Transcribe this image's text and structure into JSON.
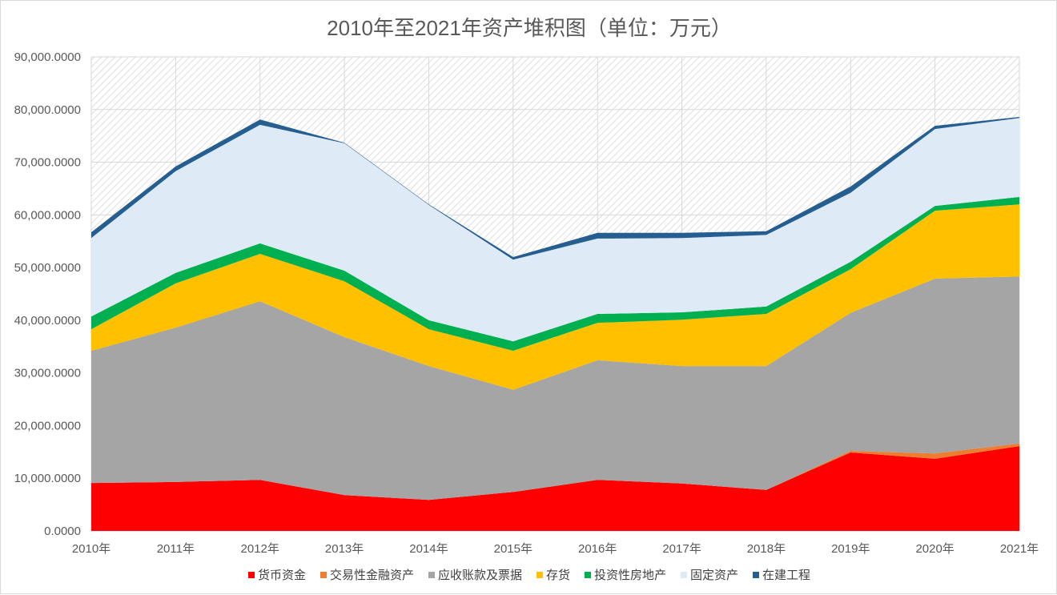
{
  "chart_data": {
    "type": "area",
    "stacked": true,
    "title": "2010年至2021年资产堆积图（单位：万元）",
    "categories": [
      "2010年",
      "2011年",
      "2012年",
      "2013年",
      "2014年",
      "2015年",
      "2016年",
      "2017年",
      "2018年",
      "2019年",
      "2020年",
      "2021年"
    ],
    "ylim": [
      0,
      90000
    ],
    "yticks": [
      "0.0000",
      "10,000.0000",
      "20,000.0000",
      "30,000.0000",
      "40,000.0000",
      "50,000.0000",
      "60,000.0000",
      "70,000.0000",
      "80,000.0000",
      "90,000.0000"
    ],
    "grid": true,
    "legend_position": "bottom",
    "background_pattern": "diagonal-hatch",
    "series": [
      {
        "name": "货币资金",
        "color": "#ff0000",
        "values": [
          9100,
          9300,
          9700,
          6800,
          5900,
          7400,
          9700,
          9000,
          7800,
          14900,
          13700,
          16100
        ]
      },
      {
        "name": "交易性金融资产",
        "color": "#ed7d31",
        "values": [
          0,
          0,
          0,
          0,
          0,
          0,
          0,
          0,
          0,
          300,
          1000,
          500
        ]
      },
      {
        "name": "应收账款及票据",
        "color": "#a5a5a5",
        "values": [
          25100,
          29300,
          33900,
          30000,
          25400,
          19400,
          22700,
          22300,
          23500,
          26200,
          33200,
          31700
        ]
      },
      {
        "name": "存货",
        "color": "#ffc000",
        "values": [
          4100,
          8400,
          9000,
          10600,
          7000,
          7400,
          7100,
          8800,
          9900,
          8300,
          12900,
          13700
        ]
      },
      {
        "name": "投资性房地产",
        "color": "#00b050",
        "values": [
          2400,
          2000,
          2000,
          2000,
          1700,
          1800,
          1700,
          1400,
          1400,
          1400,
          900,
          1400
        ]
      },
      {
        "name": "固定资产",
        "color": "#deebf7",
        "values": [
          14900,
          19300,
          22500,
          24200,
          21900,
          15500,
          14300,
          14100,
          13600,
          13100,
          14600,
          15000
        ]
      },
      {
        "name": "在建工程",
        "color": "#255e91",
        "values": [
          1100,
          900,
          1000,
          100,
          100,
          500,
          1100,
          1000,
          700,
          1200,
          600,
          200
        ]
      }
    ]
  }
}
